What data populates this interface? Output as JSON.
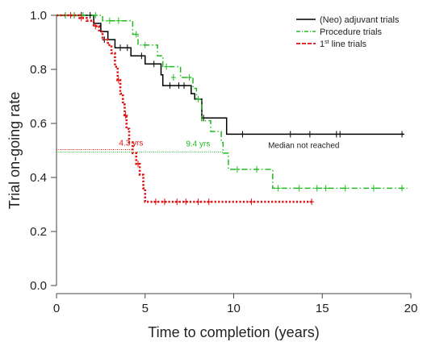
{
  "chart_data": {
    "type": "line",
    "subtype": "kaplan-meier step curves",
    "xlabel": "Time to completion (years)",
    "ylabel": "Trial on-going rate",
    "xlim": [
      0,
      20
    ],
    "ylim": [
      0,
      1.0
    ],
    "xticks": [
      "0",
      "5",
      "10",
      "15",
      "20"
    ],
    "yticks": [
      "0.0",
      "0.2",
      "0.4",
      "0.6",
      "0.8",
      "1.0"
    ],
    "legend_position": "top-right",
    "grid": false,
    "series": [
      {
        "name": "(Neo) adjuvant trials",
        "color": "#000000",
        "style": "solid",
        "steps": [
          [
            0,
            1.0
          ],
          [
            2.1,
            0.97
          ],
          [
            2.5,
            0.94
          ],
          [
            2.9,
            0.91
          ],
          [
            3.3,
            0.88
          ],
          [
            4.2,
            0.85
          ],
          [
            5.0,
            0.82
          ],
          [
            5.9,
            0.78
          ],
          [
            6.0,
            0.74
          ],
          [
            7.6,
            0.71
          ],
          [
            7.8,
            0.69
          ],
          [
            8.2,
            0.62
          ],
          [
            9.6,
            0.56
          ],
          [
            19.6,
            0.56
          ]
        ],
        "censor": [
          [
            0.5,
            1.0
          ],
          [
            1.0,
            1.0
          ],
          [
            1.4,
            1.0
          ],
          [
            1.9,
            1.0
          ],
          [
            2.7,
            0.91
          ],
          [
            3.6,
            0.88
          ],
          [
            4.0,
            0.88
          ],
          [
            4.8,
            0.85
          ],
          [
            5.5,
            0.82
          ],
          [
            6.4,
            0.74
          ],
          [
            6.9,
            0.74
          ],
          [
            7.2,
            0.74
          ],
          [
            8.3,
            0.62
          ],
          [
            10.5,
            0.56
          ],
          [
            13.2,
            0.56
          ],
          [
            14.3,
            0.56
          ],
          [
            15.8,
            0.56
          ],
          [
            16.0,
            0.56
          ],
          [
            19.5,
            0.56
          ]
        ]
      },
      {
        "name": "Procedure trials",
        "color": "#22bb22",
        "style": "dashdot",
        "steps": [
          [
            0,
            1.0
          ],
          [
            2.6,
            0.98
          ],
          [
            4.3,
            0.93
          ],
          [
            4.6,
            0.89
          ],
          [
            5.7,
            0.85
          ],
          [
            6.0,
            0.81
          ],
          [
            7.0,
            0.77
          ],
          [
            7.7,
            0.73
          ],
          [
            7.9,
            0.69
          ],
          [
            8.2,
            0.61
          ],
          [
            8.7,
            0.57
          ],
          [
            9.3,
            0.53
          ],
          [
            9.4,
            0.49
          ],
          [
            9.7,
            0.43
          ],
          [
            12.2,
            0.36
          ],
          [
            19.8,
            0.36
          ]
        ],
        "censor": [
          [
            0.5,
            1.0
          ],
          [
            1.0,
            1.0
          ],
          [
            1.5,
            1.0
          ],
          [
            2.2,
            1.0
          ],
          [
            3.0,
            0.98
          ],
          [
            3.5,
            0.98
          ],
          [
            4.5,
            0.93
          ],
          [
            5.0,
            0.89
          ],
          [
            6.2,
            0.81
          ],
          [
            6.6,
            0.77
          ],
          [
            7.5,
            0.77
          ],
          [
            8.0,
            0.69
          ],
          [
            10.2,
            0.43
          ],
          [
            11.3,
            0.43
          ],
          [
            12.5,
            0.36
          ],
          [
            13.7,
            0.36
          ],
          [
            14.7,
            0.36
          ],
          [
            15.2,
            0.36
          ],
          [
            16.3,
            0.36
          ],
          [
            17.9,
            0.36
          ],
          [
            19.5,
            0.36
          ]
        ]
      },
      {
        "name": "1st line trials",
        "name_base": "1",
        "name_sup": "st",
        "name_rest": " line trials",
        "color": "#dd1111",
        "style": "dotted",
        "steps": [
          [
            0,
            1.0
          ],
          [
            1.3,
            0.99
          ],
          [
            1.7,
            0.98
          ],
          [
            2.1,
            0.96
          ],
          [
            2.4,
            0.94
          ],
          [
            2.6,
            0.91
          ],
          [
            2.9,
            0.89
          ],
          [
            3.1,
            0.86
          ],
          [
            3.3,
            0.81
          ],
          [
            3.45,
            0.76
          ],
          [
            3.6,
            0.71
          ],
          [
            3.75,
            0.67
          ],
          [
            3.85,
            0.63
          ],
          [
            3.95,
            0.58
          ],
          [
            4.1,
            0.53
          ],
          [
            4.3,
            0.49
          ],
          [
            4.5,
            0.45
          ],
          [
            4.7,
            0.41
          ],
          [
            4.9,
            0.36
          ],
          [
            5.0,
            0.31
          ],
          [
            14.5,
            0.31
          ]
        ],
        "censor": [
          [
            0.8,
            1.0
          ],
          [
            1.4,
            0.99
          ],
          [
            2.2,
            0.96
          ],
          [
            3.5,
            0.76
          ],
          [
            3.9,
            0.63
          ],
          [
            4.6,
            0.45
          ],
          [
            5.6,
            0.31
          ],
          [
            6.1,
            0.31
          ],
          [
            6.8,
            0.31
          ],
          [
            7.3,
            0.31
          ],
          [
            8.0,
            0.31
          ],
          [
            8.6,
            0.31
          ],
          [
            11.0,
            0.31
          ],
          [
            14.4,
            0.31
          ]
        ]
      }
    ],
    "annotations": [
      {
        "text": "4.3 yrs",
        "x": 4.3,
        "y": 0.5,
        "color": "#dd1111"
      },
      {
        "text": "9.4 yrs",
        "x": 9.4,
        "y": 0.5,
        "color": "#22bb22"
      },
      {
        "text": "Median not reached",
        "x": 14.5,
        "y": 0.56,
        "color": "#222222"
      }
    ]
  }
}
